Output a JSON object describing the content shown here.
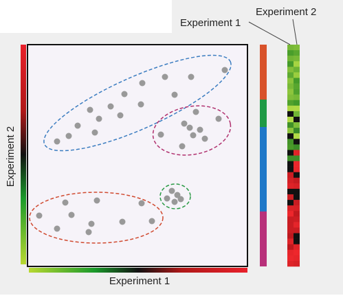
{
  "heatmap_labels": {
    "left": "Experiment 1",
    "right": "Experiment 2"
  },
  "axes": {
    "x_label": "Experiment 1",
    "y_label": "Experiment 2"
  }
}
